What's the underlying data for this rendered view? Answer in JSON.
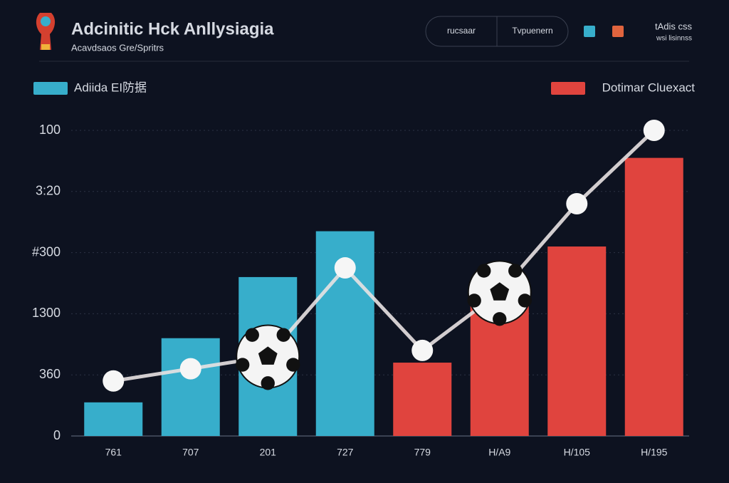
{
  "header": {
    "title": "Adcinitic Hck Anllysiagia",
    "subtitle": "Acavdsaos Gre/Spritrs",
    "buttons": [
      "rucsaar",
      "Tvpuenern"
    ],
    "corner_text": [
      "tAdis css",
      "wsi lisinnss"
    ]
  },
  "chart_data": {
    "type": "bar",
    "categories": [
      "761",
      "707",
      "201",
      "727",
      "779",
      "H/A9",
      "H/105",
      "H/195"
    ],
    "series": [
      {
        "name": "Adiida EI防据",
        "color": "#37aecb",
        "values": [
          11,
          32,
          52,
          67,
          null,
          null,
          null,
          null
        ]
      },
      {
        "name": "Dotimar Cluexact",
        "color": "#e0443e",
        "values": [
          null,
          null,
          null,
          null,
          24,
          44,
          62,
          91
        ]
      },
      {
        "kind": "line",
        "color": "#e8e2e2",
        "values": [
          18,
          22,
          26,
          55,
          28,
          47,
          76,
          100
        ]
      }
    ],
    "ylim": [
      0,
      100
    ],
    "yticks": [
      0,
      {
        "value": 20,
        "label": "360"
      },
      {
        "value": 40,
        "label": "1300"
      },
      {
        "value": 60,
        "label": "#300"
      },
      {
        "value": 80,
        "label": "3:20"
      },
      100
    ],
    "grid": true
  }
}
